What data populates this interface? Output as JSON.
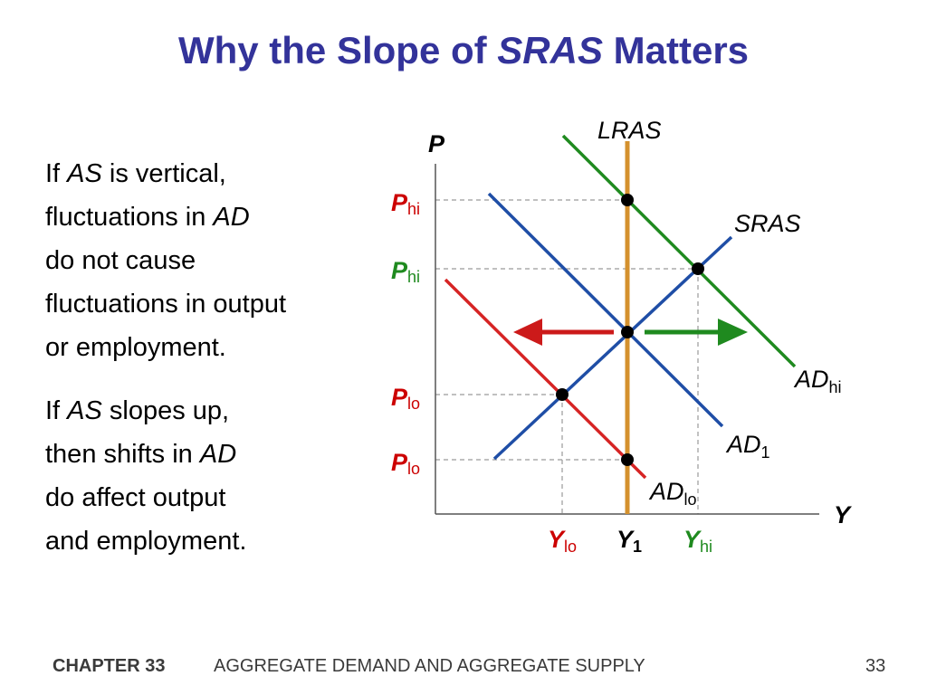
{
  "title": {
    "prefix": "Why the Slope of ",
    "italic": "SRAS",
    "suffix": " Matters"
  },
  "paragraph1": {
    "l1_a": "If ",
    "l1_b": "AS",
    "l1_c": " is vertical,",
    "l2_a": "fluctuations in ",
    "l2_b": "AD",
    "l3": "do not cause",
    "l4": "fluctuations in output",
    "l5": "or employment."
  },
  "paragraph2": {
    "l1_a": "If ",
    "l1_b": "AS",
    "l1_c": " slopes up,",
    "l2_a": "then shifts in ",
    "l2_b": "AD",
    "l3": "do affect output",
    "l4": "and employment."
  },
  "diagram": {
    "axis_p": "P",
    "axis_y": "Y",
    "lras_label": "LRAS",
    "sras_label": "SRAS",
    "ad_hi": {
      "main": "AD",
      "sub": "hi"
    },
    "ad_1": {
      "main": "AD",
      "sub": "1"
    },
    "ad_lo": {
      "main": "AD",
      "sub": "lo"
    },
    "p_labels": [
      {
        "main": "P",
        "sub": "hi"
      },
      {
        "main": "P",
        "sub": "hi"
      },
      {
        "main": "P",
        "sub": "lo"
      },
      {
        "main": "P",
        "sub": "lo"
      }
    ],
    "y_labels": [
      {
        "main": "Y",
        "sub": "lo"
      },
      {
        "main": "Y",
        "sub": "1"
      },
      {
        "main": "Y",
        "sub": "hi"
      }
    ],
    "colors": {
      "lras": "#d4912e",
      "sras": "#1f4ea6",
      "ad1": "#1f4ea6",
      "adhi": "#1f8a1f",
      "adlo": "#d62424",
      "red_label": "#cc0000",
      "green_label": "#1f8a1f",
      "title": "#33339a"
    }
  },
  "footer": {
    "chapter": "CHAPTER 33",
    "title": "AGGREGATE DEMAND AND AGGREGATE SUPPLY",
    "page": "33"
  }
}
